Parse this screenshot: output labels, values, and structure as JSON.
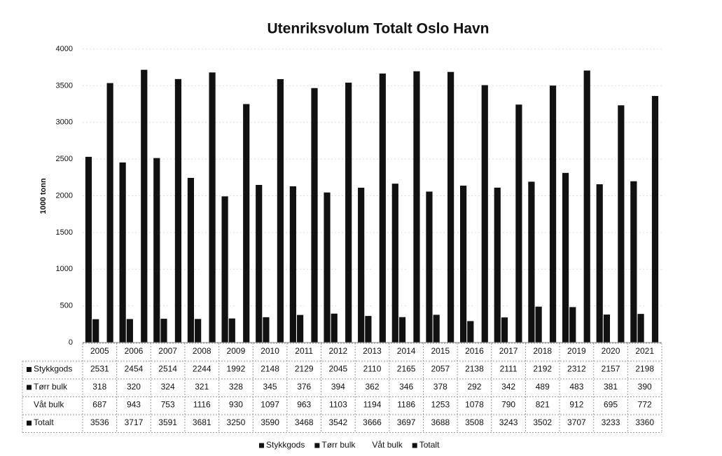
{
  "chart_data": {
    "type": "bar",
    "title": "Utenriksvolum Totalt Oslo Havn",
    "y_label": "1000 tonn",
    "categories": [
      "2005",
      "2006",
      "2007",
      "2008",
      "2009",
      "2010",
      "2011",
      "2012",
      "2013",
      "2014",
      "2015",
      "2016",
      "2017",
      "2018",
      "2019",
      "2020",
      "2021"
    ],
    "series": [
      {
        "name": "Stykkgods",
        "color": "#111111",
        "values": [
          2531,
          2454,
          2514,
          2244,
          1992,
          2148,
          2129,
          2045,
          2110,
          2165,
          2057,
          2138,
          2111,
          2192,
          2312,
          2157,
          2198
        ]
      },
      {
        "name": "Tørr bulk",
        "color": "#111111",
        "values": [
          318,
          320,
          324,
          321,
          328,
          345,
          376,
          394,
          362,
          346,
          378,
          292,
          342,
          489,
          483,
          381,
          390
        ]
      },
      {
        "name": "Våt bulk",
        "color": "#ffffff",
        "values": [
          687,
          943,
          753,
          1116,
          930,
          1097,
          963,
          1103,
          1194,
          1186,
          1253,
          1078,
          790,
          821,
          912,
          695,
          772
        ]
      },
      {
        "name": "Totalt",
        "color": "#111111",
        "values": [
          3536,
          3717,
          3591,
          3681,
          3250,
          3590,
          3468,
          3542,
          3666,
          3697,
          3688,
          3508,
          3243,
          3502,
          3707,
          3233,
          3360
        ]
      }
    ],
    "ylim": [
      0,
      4000
    ],
    "yticks": [
      0,
      500,
      1000,
      1500,
      2000,
      2500,
      3000,
      3500,
      4000
    ],
    "grid": true,
    "legend": "bottom",
    "data_table": true
  }
}
